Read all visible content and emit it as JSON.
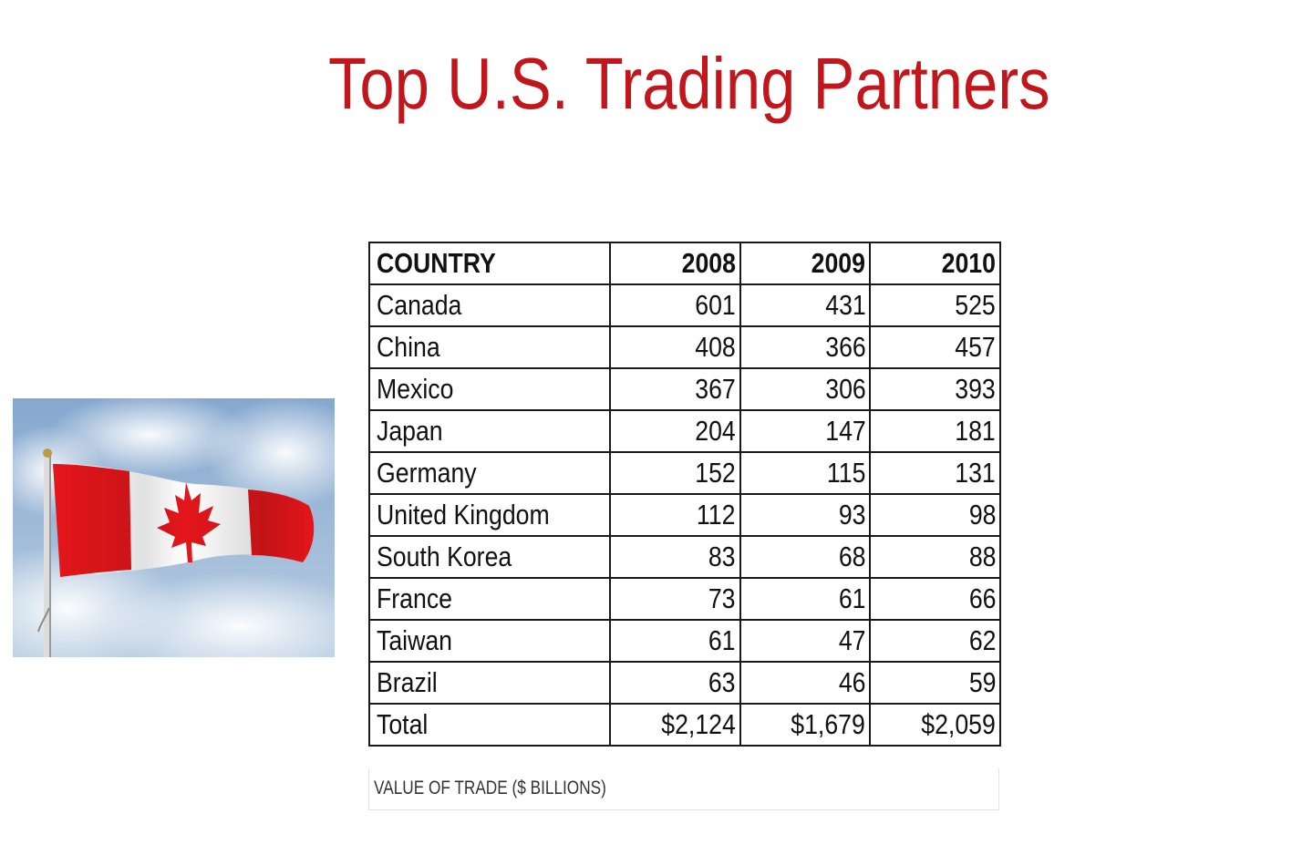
{
  "slide": {
    "title": "Top U.S. Trading Partners"
  },
  "image": {
    "icon": "canada-flag-photo",
    "colors": {
      "flag_red": "#e4161b",
      "flag_white": "#ffffff",
      "sky": "#9db8d6"
    }
  },
  "table": {
    "headers": [
      "COUNTRY",
      "2008",
      "2009",
      "2010"
    ],
    "rows": [
      [
        "Canada",
        "601",
        "431",
        "525"
      ],
      [
        "China",
        "408",
        "366",
        "457"
      ],
      [
        "Mexico",
        "367",
        "306",
        "393"
      ],
      [
        "Japan",
        "204",
        "147",
        "181"
      ],
      [
        "Germany",
        "152",
        "115",
        "131"
      ],
      [
        "United Kingdom",
        "112",
        "93",
        "98"
      ],
      [
        "South Korea",
        "83",
        "68",
        "88"
      ],
      [
        "France",
        "73",
        "61",
        "66"
      ],
      [
        "Taiwan",
        "61",
        "47",
        "62"
      ],
      [
        "Brazil",
        "63",
        "46",
        "59"
      ]
    ],
    "total": [
      "Total",
      "$2,124",
      "$1,679",
      "$2,059"
    ],
    "caption": "VALUE OF TRADE ($ BILLIONS)"
  },
  "colors": {
    "title": "#c0161c",
    "table_border": "#1a1a1a"
  }
}
